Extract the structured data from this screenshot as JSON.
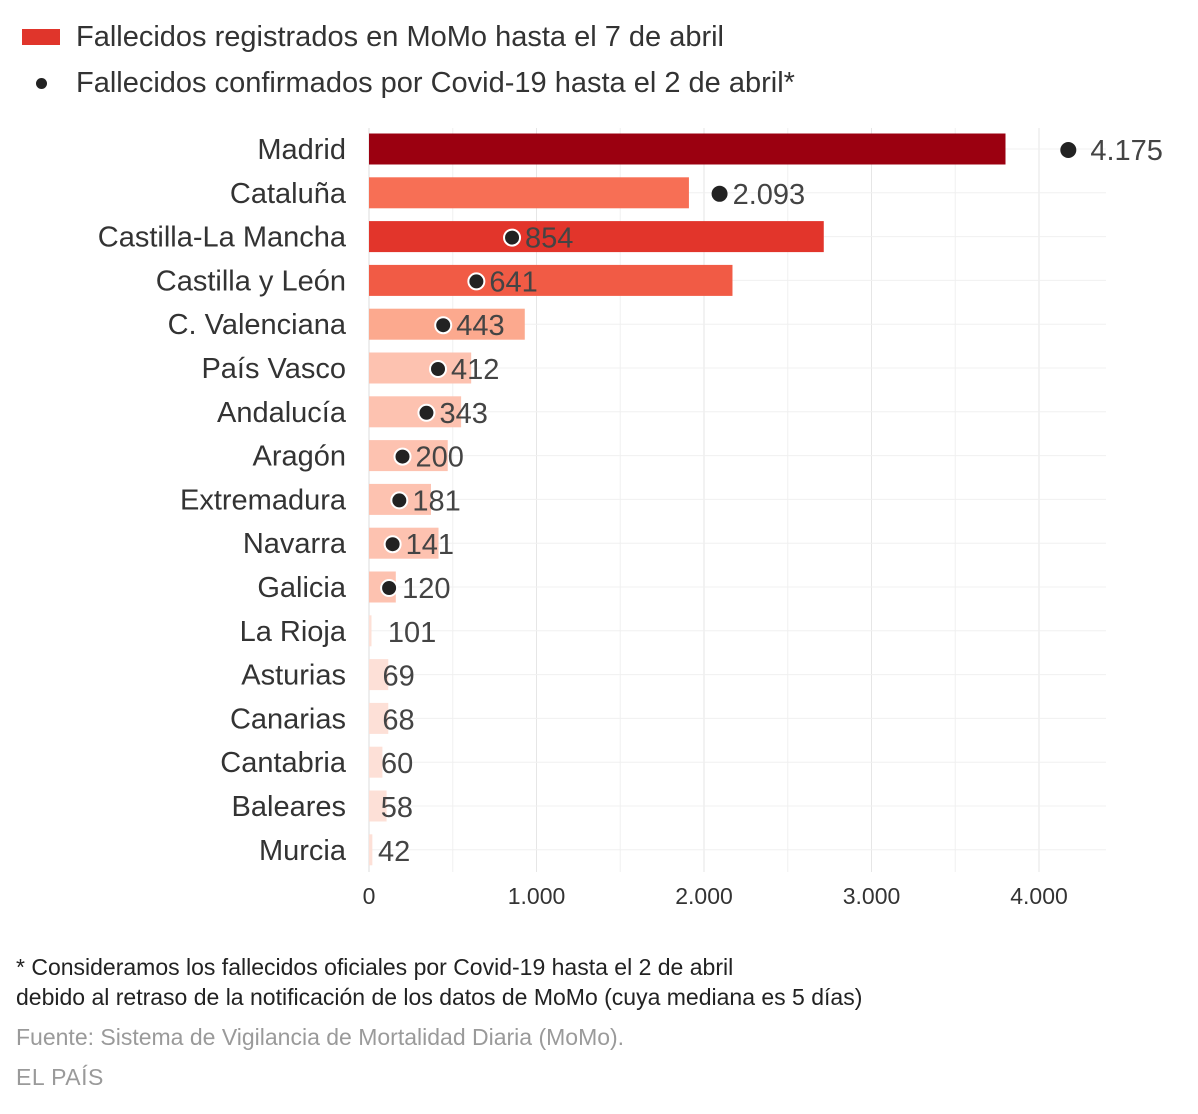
{
  "legend": {
    "bar_label": "Fallecidos registrados en MoMo hasta el 7 de abril",
    "dot_label": "Fallecidos confirmados por Covid-19 hasta el 2 de abril*",
    "bar_color": "#e0352b",
    "dot_color": "#222222"
  },
  "chart_data": {
    "type": "bar",
    "orientation": "horizontal",
    "xlim": [
      0,
      4400
    ],
    "x_ticks": [
      0,
      1000,
      2000,
      3000,
      4000
    ],
    "x_tick_labels": [
      "0",
      "1.000",
      "2.000",
      "3.000",
      "4.000"
    ],
    "grid": true,
    "legend_position": "top-left",
    "categories": [
      "Madrid",
      "Cataluña",
      "Castilla-La Mancha",
      "Castilla y León",
      "C. Valenciana",
      "País Vasco",
      "Andalucía",
      "Aragón",
      "Extremadura",
      "Navarra",
      "Galicia",
      "La Rioja",
      "Asturias",
      "Canarias",
      "Cantabria",
      "Baleares",
      "Murcia"
    ],
    "series": [
      {
        "name": "Fallecidos registrados en MoMo hasta el 7 de abril",
        "type": "bar",
        "values": [
          3800,
          1910,
          2715,
          2170,
          930,
          610,
          550,
          470,
          370,
          415,
          160,
          15,
          115,
          115,
          80,
          105,
          20
        ],
        "colors": [
          "#9b0010",
          "#f76f55",
          "#e2352b",
          "#f15b45",
          "#fca98e",
          "#fdc2b0",
          "#fdc2b0",
          "#fdc2b0",
          "#fdc2b0",
          "#fdc2b0",
          "#fdc2b0",
          "#fde0d7",
          "#fde0d7",
          "#fde0d7",
          "#fde0d7",
          "#fde0d7",
          "#fde0d7"
        ]
      },
      {
        "name": "Fallecidos confirmados por Covid-19 hasta el 2 de abril*",
        "type": "dot",
        "values": [
          4175,
          2093,
          854,
          641,
          443,
          412,
          343,
          200,
          181,
          141,
          120,
          101,
          69,
          68,
          60,
          58,
          42
        ],
        "labels": [
          "4.175",
          "2.093",
          "854",
          "641",
          "443",
          "412",
          "343",
          "200",
          "181",
          "141",
          "120",
          "101",
          "69",
          "68",
          "60",
          "58",
          "42"
        ],
        "show_dot": [
          true,
          true,
          true,
          true,
          true,
          true,
          true,
          true,
          true,
          true,
          true,
          false,
          false,
          false,
          false,
          false,
          false
        ],
        "dot_outline": [
          false,
          false,
          true,
          true,
          true,
          true,
          true,
          true,
          true,
          true,
          true,
          false,
          false,
          false,
          false,
          false,
          false
        ]
      }
    ]
  },
  "notes": {
    "footnote_line1": "* Consideramos los fallecidos oficiales por Covid-19 hasta el 2 de abril",
    "footnote_line2": "debido al retraso de la notificación de los datos de MoMo (cuya mediana es 5 días)",
    "source": "Fuente: Sistema de Vigilancia de Mortalidad Diaria (MoMo).",
    "brand": "EL PAÍS"
  }
}
